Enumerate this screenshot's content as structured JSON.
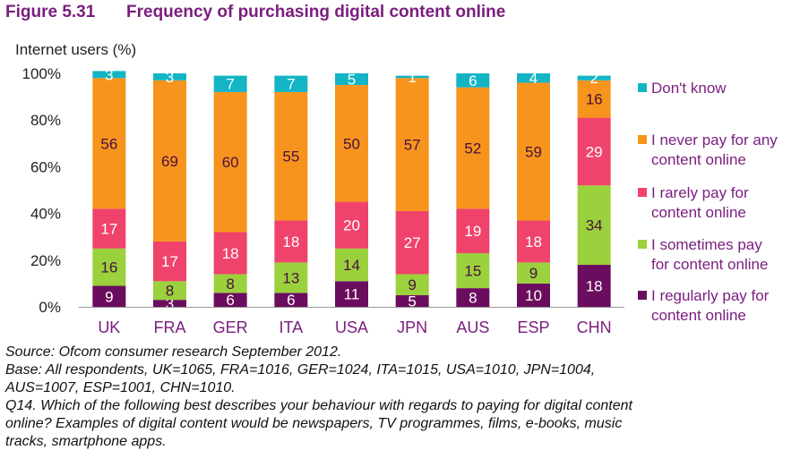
{
  "figure": {
    "number": "Figure 5.31",
    "title": "Frequency of purchasing digital content online"
  },
  "chart_data": {
    "type": "bar",
    "stacked": true,
    "ylabel": "Internet users (%)",
    "ylim": [
      0,
      100
    ],
    "yticks": [
      "0%",
      "20%",
      "40%",
      "60%",
      "80%",
      "100%"
    ],
    "categories": [
      "UK",
      "FRA",
      "GER",
      "ITA",
      "USA",
      "JPN",
      "AUS",
      "ESP",
      "CHN"
    ],
    "legend_position": "right",
    "series": [
      {
        "name": "I regularly pay for content online",
        "legend_lines": [
          "I regularly pay for",
          "content online"
        ],
        "color": "#6b0d5e",
        "label_color": "#ffffff",
        "values": [
          9,
          3,
          6,
          6,
          11,
          5,
          8,
          10,
          18
        ]
      },
      {
        "name": "I sometimes pay for content online",
        "legend_lines": [
          "I sometimes pay",
          "for content online"
        ],
        "color": "#9bd13c",
        "label_color": "#4a1040",
        "values": [
          16,
          8,
          8,
          13,
          14,
          9,
          15,
          9,
          34
        ]
      },
      {
        "name": "I rarely pay for content online",
        "legend_lines": [
          "I rarely pay for",
          "content online"
        ],
        "color": "#f0436c",
        "label_color": "#ffffff",
        "values": [
          17,
          17,
          18,
          18,
          20,
          27,
          19,
          18,
          29
        ]
      },
      {
        "name": "I never pay for any content online",
        "legend_lines": [
          "I never pay for any",
          "content online"
        ],
        "color": "#f7941d",
        "label_color": "#4a1040",
        "values": [
          56,
          69,
          60,
          55,
          50,
          57,
          52,
          59,
          16
        ]
      },
      {
        "name": "Don't know",
        "legend_lines": [
          "Don't know"
        ],
        "color": "#13b5c5",
        "label_color": "#ffffff",
        "values": [
          3,
          3,
          7,
          7,
          5,
          1,
          6,
          4,
          2
        ]
      }
    ]
  },
  "footnotes": [
    "Source: Ofcom consumer research September 2012.",
    "Base: All respondents, UK=1065, FRA=1016, GER=1024, ITA=1015, USA=1010, JPN=1004,",
    "AUS=1007, ESP=1001, CHN=1010.",
    "Q14. Which of the following best describes your behaviour with regards to paying for digital content",
    "online? Examples of digital content would be newspapers, TV programmes, films, e-books, music",
    "tracks, smartphone apps."
  ]
}
